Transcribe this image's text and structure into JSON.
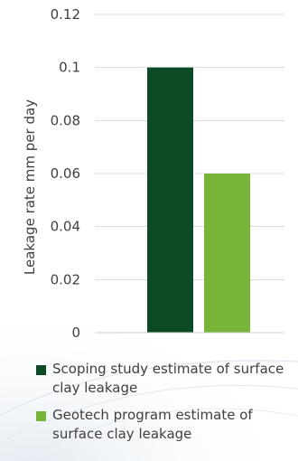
{
  "chart_data": {
    "type": "bar",
    "categories": [
      ""
    ],
    "series": [
      {
        "name": "Scoping study estimate of surface clay leakage",
        "values": [
          0.1
        ],
        "color": "#0b4a22"
      },
      {
        "name": "Geotech program estimate of surface clay leakage",
        "values": [
          0.06
        ],
        "color": "#77b538"
      }
    ],
    "title": "",
    "xlabel": "",
    "ylabel": "Leakage rate mm per day",
    "ylim": [
      0,
      0.12
    ],
    "yticks": [
      "0",
      "0.02",
      "0.04",
      "0.06",
      "0.08",
      "0.1",
      "0.12"
    ],
    "grid": true,
    "legend_position": "bottom"
  }
}
